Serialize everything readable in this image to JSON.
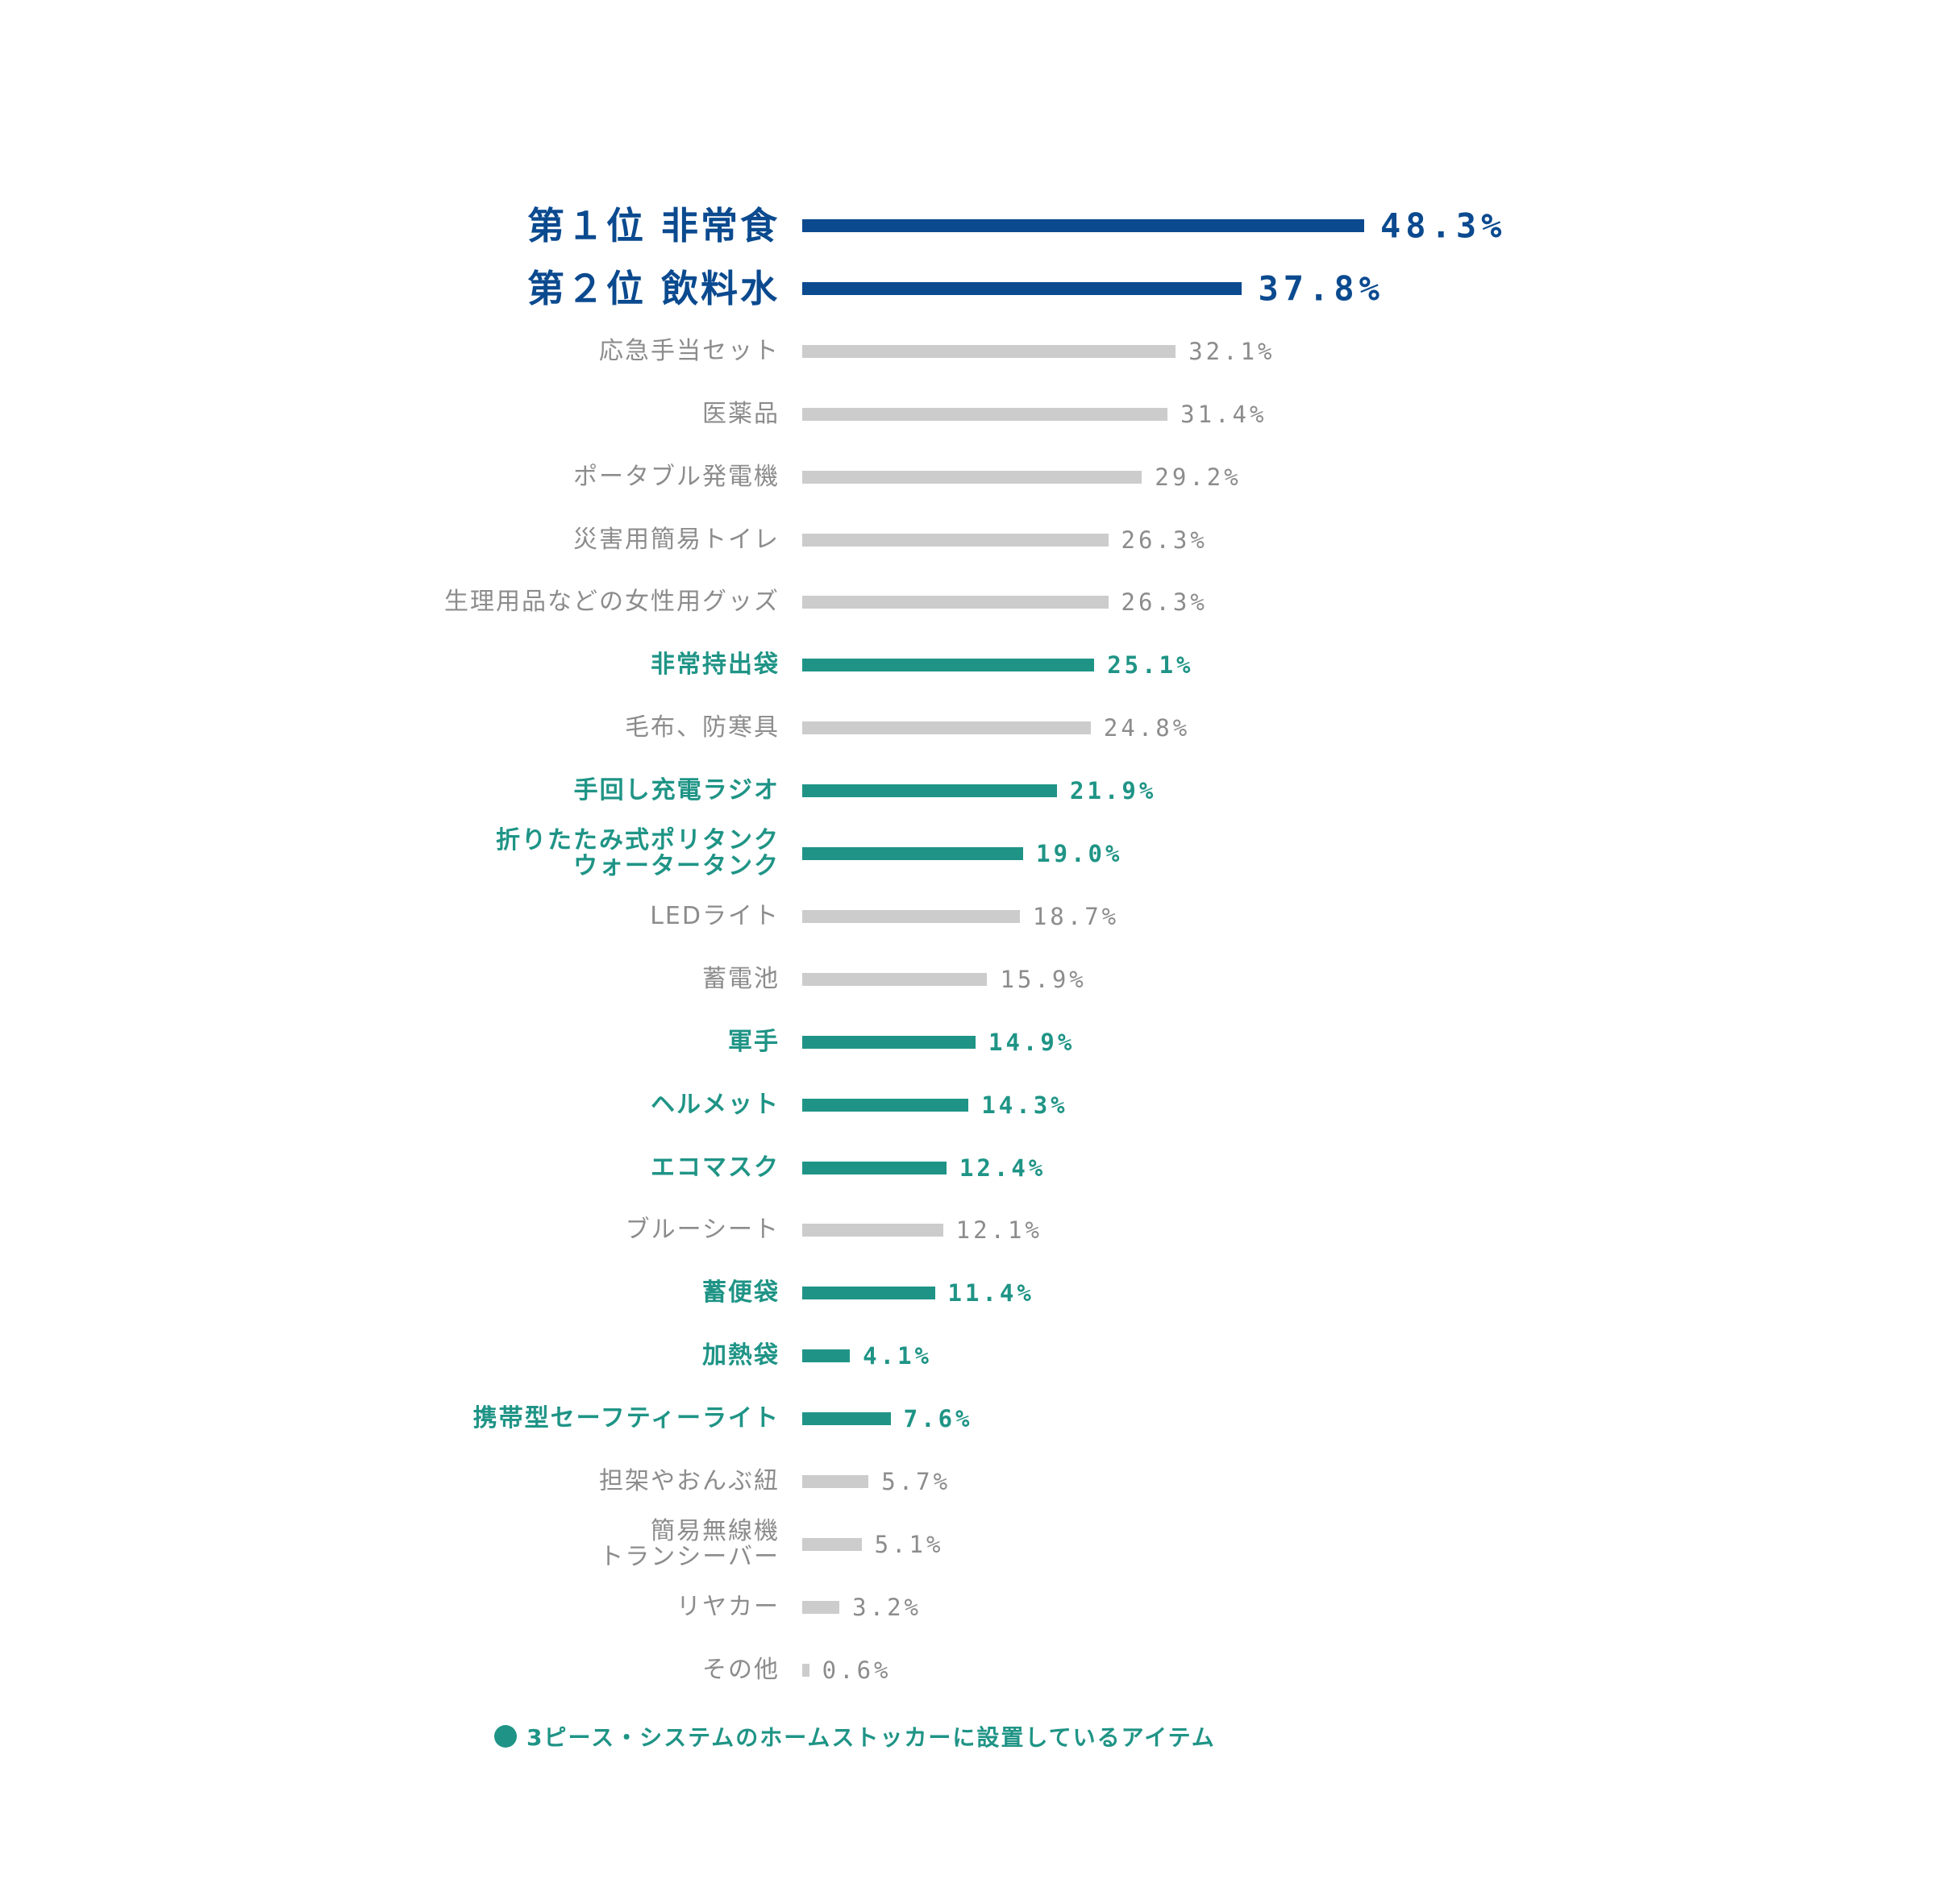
{
  "colors": {
    "top": "#0b4a8f",
    "highlight": "#1f9486",
    "normal": "#cccccc",
    "label_normal": "#8c8c8c"
  },
  "chart_data": {
    "type": "bar",
    "orientation": "horizontal",
    "xlim": [
      0,
      48.3
    ],
    "value_suffix": "%",
    "categories": [
      "第１位 非常食",
      "第２位 飲料水",
      "応急手当セット",
      "医薬品",
      "ポータブル発電機",
      "災害用簡易トイレ",
      "生理用品などの女性用グッズ",
      "非常持出袋",
      "毛布、防寒具",
      "手回し充電ラジオ",
      "折りたたみ式ポリタンク\nウォータータンク",
      "LEDライト",
      "蓄電池",
      "軍手",
      "ヘルメット",
      "エコマスク",
      "ブルーシート",
      "蓄便袋",
      "加熱袋",
      "携帯型セーフティーライト",
      "担架やおんぶ紐",
      "簡易無線機\nトランシーバー",
      "リヤカー",
      "その他"
    ],
    "values": [
      48.3,
      37.8,
      32.1,
      31.4,
      29.2,
      26.3,
      26.3,
      25.1,
      24.8,
      21.9,
      19.0,
      18.7,
      15.9,
      14.9,
      14.3,
      12.4,
      12.1,
      11.4,
      4.1,
      7.6,
      5.7,
      5.1,
      3.2,
      0.6
    ],
    "value_labels": [
      "48.3%",
      "37.8%",
      "32.1%",
      "31.4%",
      "29.2%",
      "26.3%",
      "26.3%",
      "25.1%",
      "24.8%",
      "21.9%",
      "19.0%",
      "18.7%",
      "15.9%",
      "14.9%",
      "14.3%",
      "12.4%",
      "12.1%",
      "11.4%",
      "4.1%",
      "7.6%",
      "5.7%",
      "5.1%",
      "3.2%",
      "0.6%"
    ],
    "groups": [
      "top",
      "top",
      "normal",
      "normal",
      "normal",
      "normal",
      "normal",
      "highlight",
      "normal",
      "highlight",
      "highlight",
      "normal",
      "normal",
      "highlight",
      "highlight",
      "highlight",
      "normal",
      "highlight",
      "highlight",
      "highlight",
      "normal",
      "normal",
      "normal",
      "normal"
    ],
    "legend": {
      "label": "3ピース・システムのホームストッカーに設置しているアイテム",
      "group": "highlight",
      "placement": "bottom-left"
    }
  }
}
